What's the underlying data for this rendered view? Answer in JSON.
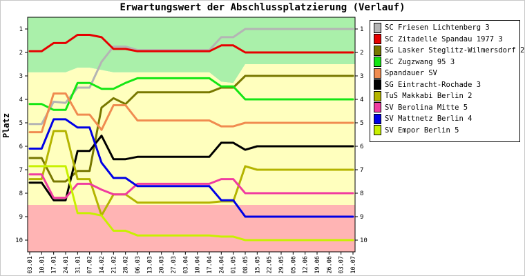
{
  "chart_data": {
    "type": "line",
    "title": "Erwartungswert der Abschlussplatzierung (Verlauf)",
    "ylabel": "Platz",
    "xlabel": "",
    "ylim": [
      1,
      10
    ],
    "y_ticks": [
      1,
      2,
      3,
      4,
      5,
      6,
      7,
      8,
      9,
      10
    ],
    "y_inverted": true,
    "grid": false,
    "legend_position": "right",
    "x": [
      "03.01",
      "10.01",
      "17.01",
      "24.01",
      "31.01",
      "07.02",
      "14.02",
      "21.02",
      "28.02",
      "06.03",
      "13.03",
      "20.03",
      "27.03",
      "03.04",
      "10.04",
      "17.04",
      "24.04",
      "01.05",
      "08.05",
      "15.05",
      "22.05",
      "29.05",
      "05.06",
      "12.06",
      "19.06",
      "26.06",
      "03.07",
      "10.07"
    ],
    "background_bands": [
      {
        "color": "#aaf0aa",
        "top": [
          0.5,
          0.5,
          0.5,
          0.5,
          0.5,
          0.5,
          0.5,
          0.5,
          0.5,
          0.5,
          0.5,
          0.5,
          0.5,
          0.5,
          0.5,
          0.5,
          0.5,
          0.5,
          0.5,
          0.5,
          0.5,
          0.5,
          0.5,
          0.5,
          0.5,
          0.5,
          0.5,
          0.5
        ],
        "bottom": [
          2.85,
          2.85,
          2.85,
          2.85,
          2.65,
          2.65,
          2.75,
          2.85,
          2.85,
          2.85,
          2.85,
          2.85,
          2.85,
          2.85,
          2.85,
          2.85,
          3.25,
          3.3,
          2.5,
          2.5,
          2.5,
          2.5,
          2.5,
          2.5,
          2.5,
          2.5,
          2.5,
          2.5
        ]
      },
      {
        "color": "#ffffbe",
        "top": [
          2.85,
          2.85,
          2.85,
          2.85,
          2.65,
          2.65,
          2.75,
          2.85,
          2.85,
          2.85,
          2.85,
          2.85,
          2.85,
          2.85,
          2.85,
          2.85,
          3.25,
          3.3,
          2.5,
          2.5,
          2.5,
          2.5,
          2.5,
          2.5,
          2.5,
          2.5,
          2.5,
          2.5
        ],
        "bottom": [
          8.5,
          8.5,
          8.5,
          8.5,
          8.5,
          8.5,
          8.5,
          8.5,
          8.5,
          8.5,
          8.5,
          8.5,
          8.5,
          8.5,
          8.5,
          8.5,
          8.5,
          8.5,
          8.5,
          8.5,
          8.5,
          8.5,
          8.5,
          8.5,
          8.5,
          8.5,
          8.5,
          8.5
        ]
      },
      {
        "color": "#ffb4b4",
        "top": [
          8.5,
          8.5,
          8.5,
          8.5,
          8.5,
          8.5,
          8.5,
          8.5,
          8.5,
          8.5,
          8.5,
          8.5,
          8.5,
          8.5,
          8.5,
          8.5,
          8.5,
          8.5,
          8.5,
          8.5,
          8.5,
          8.5,
          8.5,
          8.5,
          8.5,
          8.5,
          8.5,
          8.5
        ],
        "bottom": [
          10.5,
          10.5,
          10.5,
          10.5,
          10.5,
          10.5,
          10.5,
          10.5,
          10.5,
          10.5,
          10.5,
          10.5,
          10.5,
          10.5,
          10.5,
          10.5,
          10.5,
          10.5,
          10.5,
          10.5,
          10.5,
          10.5,
          10.5,
          10.5,
          10.5,
          10.5,
          10.5,
          10.5
        ]
      }
    ],
    "series": [
      {
        "name": "SC Friesen Lichtenberg 3",
        "color": "#b4b4b4",
        "values": [
          5.05,
          5.05,
          4.1,
          4.15,
          3.5,
          3.5,
          2.4,
          1.75,
          1.75,
          1.9,
          1.9,
          1.9,
          1.9,
          1.9,
          1.9,
          1.9,
          1.35,
          1.35,
          1.0,
          1.0,
          1.0,
          1.0,
          1.0,
          1.0,
          1.0,
          1.0,
          1.0,
          1.0
        ]
      },
      {
        "name": "SC Zitadelle Spandau 1977 3",
        "color": "#e60000",
        "values": [
          1.95,
          1.95,
          1.6,
          1.6,
          1.25,
          1.25,
          1.35,
          1.85,
          1.85,
          1.95,
          1.95,
          1.95,
          1.95,
          1.95,
          1.95,
          1.95,
          1.7,
          1.7,
          2.0,
          2.0,
          2.0,
          2.0,
          2.0,
          2.0,
          2.0,
          2.0,
          2.0,
          2.0
        ]
      },
      {
        "name": "SG Lasker Steglitz-Wilmersdorf 2",
        "color": "#787800",
        "values": [
          6.5,
          6.5,
          7.5,
          7.5,
          7.05,
          7.05,
          4.35,
          3.95,
          4.2,
          3.7,
          3.7,
          3.7,
          3.7,
          3.7,
          3.7,
          3.7,
          3.5,
          3.5,
          3.0,
          3.0,
          3.0,
          3.0,
          3.0,
          3.0,
          3.0,
          3.0,
          3.0,
          3.0
        ]
      },
      {
        "name": "SC Zugzwang 95 3",
        "color": "#14e614",
        "values": [
          4.2,
          4.2,
          4.45,
          4.45,
          3.3,
          3.3,
          3.55,
          3.55,
          3.3,
          3.1,
          3.1,
          3.1,
          3.1,
          3.1,
          3.1,
          3.1,
          3.45,
          3.45,
          4.0,
          4.0,
          4.0,
          4.0,
          4.0,
          4.0,
          4.0,
          4.0,
          4.0,
          4.0
        ]
      },
      {
        "name": "Spandauer SV",
        "color": "#f08c50",
        "values": [
          5.4,
          5.4,
          3.75,
          3.75,
          4.65,
          4.65,
          5.3,
          4.25,
          4.25,
          4.9,
          4.9,
          4.9,
          4.9,
          4.9,
          4.9,
          4.9,
          5.15,
          5.15,
          5.0,
          5.0,
          5.0,
          5.0,
          5.0,
          5.0,
          5.0,
          5.0,
          5.0,
          5.0
        ]
      },
      {
        "name": "SG Eintracht-Rochade 3",
        "color": "#000000",
        "values": [
          7.55,
          7.55,
          8.3,
          8.3,
          6.2,
          6.2,
          5.55,
          6.55,
          6.55,
          6.45,
          6.45,
          6.45,
          6.45,
          6.45,
          6.45,
          6.45,
          5.85,
          5.85,
          6.15,
          6.0,
          6.0,
          6.0,
          6.0,
          6.0,
          6.0,
          6.0,
          6.0,
          6.0
        ]
      },
      {
        "name": "TuS Makkabi Berlin 2",
        "color": "#b4b400",
        "values": [
          7.4,
          7.4,
          5.35,
          5.35,
          7.4,
          7.4,
          8.95,
          8.05,
          8.05,
          8.4,
          8.4,
          8.4,
          8.4,
          8.4,
          8.4,
          8.4,
          8.35,
          8.35,
          6.85,
          7.0,
          7.0,
          7.0,
          7.0,
          7.0,
          7.0,
          7.0,
          7.0,
          7.0
        ]
      },
      {
        "name": "SV Berolina Mitte 5",
        "color": "#f03ca0",
        "values": [
          7.2,
          7.2,
          8.2,
          8.2,
          7.6,
          7.6,
          7.85,
          8.05,
          8.05,
          7.6,
          7.6,
          7.6,
          7.6,
          7.6,
          7.6,
          7.6,
          7.4,
          7.4,
          8.0,
          8.0,
          8.0,
          8.0,
          8.0,
          8.0,
          8.0,
          8.0,
          8.0,
          8.0
        ]
      },
      {
        "name": "SV Mattnetz Berlin 4",
        "color": "#0000e6",
        "values": [
          6.1,
          6.1,
          4.85,
          4.85,
          5.2,
          5.2,
          6.7,
          7.35,
          7.35,
          7.7,
          7.7,
          7.7,
          7.7,
          7.7,
          7.7,
          7.7,
          8.3,
          8.3,
          9.0,
          9.0,
          9.0,
          9.0,
          9.0,
          9.0,
          9.0,
          9.0,
          9.0,
          9.0
        ]
      },
      {
        "name": "SV Empor Berlin 5",
        "color": "#c8f000",
        "values": [
          6.85,
          6.85,
          6.85,
          6.85,
          8.85,
          8.85,
          8.95,
          9.6,
          9.6,
          9.8,
          9.8,
          9.8,
          9.8,
          9.8,
          9.8,
          9.8,
          9.85,
          9.85,
          10.0,
          10.0,
          10.0,
          10.0,
          10.0,
          10.0,
          10.0,
          10.0,
          10.0,
          10.0
        ]
      }
    ]
  }
}
